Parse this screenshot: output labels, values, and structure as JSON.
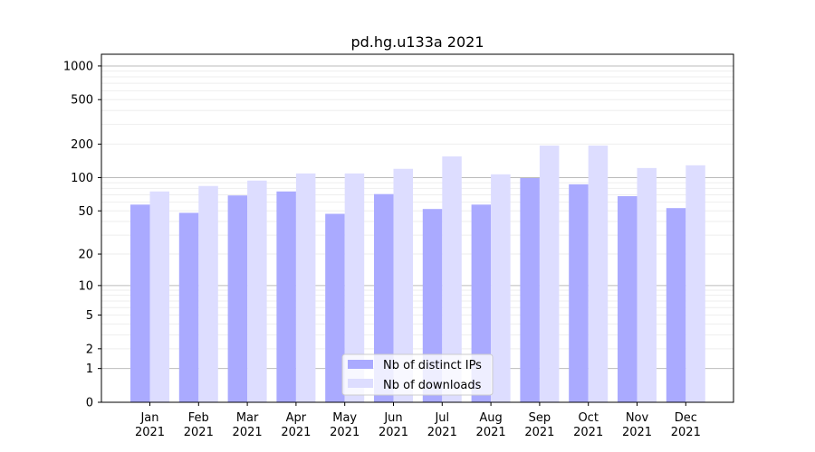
{
  "chart_data": {
    "type": "bar",
    "title": "pd.hg.u133a 2021",
    "xlabel": "",
    "ylabel": "",
    "yscale": "log(1+y)",
    "ylim": [
      0,
      1200
    ],
    "yticks": [
      0,
      1,
      2,
      5,
      10,
      20,
      50,
      100,
      200,
      500,
      1000
    ],
    "grid": true,
    "legend_position": "lower center",
    "categories": [
      "Jan\n2021",
      "Feb\n2021",
      "Mar\n2021",
      "Apr\n2021",
      "May\n2021",
      "Jun\n2021",
      "Jul\n2021",
      "Aug\n2021",
      "Sep\n2021",
      "Oct\n2021",
      "Nov\n2021",
      "Dec\n2021"
    ],
    "series": [
      {
        "name": "Nb of distinct IPs",
        "color": "#aaaaff",
        "values": [
          57,
          48,
          69,
          75,
          47,
          71,
          52,
          57,
          99,
          87,
          68,
          53
        ]
      },
      {
        "name": "Nb of downloads",
        "color": "#ddddff",
        "values": [
          75,
          84,
          94,
          109,
          109,
          120,
          155,
          107,
          194,
          194,
          122,
          129
        ]
      }
    ]
  }
}
